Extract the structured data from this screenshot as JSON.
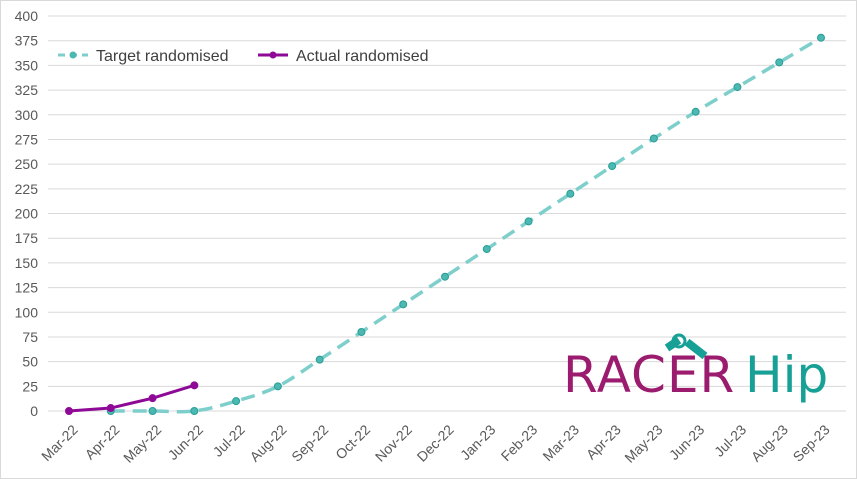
{
  "chart_data": {
    "type": "line",
    "title": "",
    "xlabel": "",
    "ylabel": "",
    "categories": [
      "Mar-22",
      "Apr-22",
      "May-22",
      "Jun-22",
      "Jul-22",
      "Aug-22",
      "Sep-22",
      "Oct-22",
      "Nov-22",
      "Dec-22",
      "Jan-23",
      "Feb-23",
      "Mar-23",
      "Apr-23",
      "May-23",
      "Jun-23",
      "Jul-23",
      "Aug-23",
      "Sep-23"
    ],
    "ylim": [
      0,
      400
    ],
    "yticks": [
      0,
      25,
      50,
      75,
      100,
      125,
      150,
      175,
      200,
      225,
      250,
      275,
      300,
      325,
      350,
      375,
      400
    ],
    "grid": true,
    "legend_position": "top-left",
    "series": [
      {
        "name": "Target randomised",
        "color": "#7ecfcb",
        "marker_color": "#4bb8b2",
        "style": "dashed",
        "values": [
          null,
          0,
          0,
          0,
          10,
          25,
          52,
          80,
          108,
          136,
          164,
          192,
          220,
          248,
          276,
          303,
          328,
          353,
          378
        ]
      },
      {
        "name": "Actual randomised",
        "color": "#8e0a96",
        "style": "solid",
        "values": [
          0,
          3,
          13,
          26,
          null,
          null,
          null,
          null,
          null,
          null,
          null,
          null,
          null,
          null,
          null,
          null,
          null,
          null,
          null
        ]
      }
    ]
  },
  "logo": {
    "text_left": "RACER",
    "text_right": "Hip",
    "color_left": "#9b1b6e",
    "color_right": "#17a096"
  }
}
